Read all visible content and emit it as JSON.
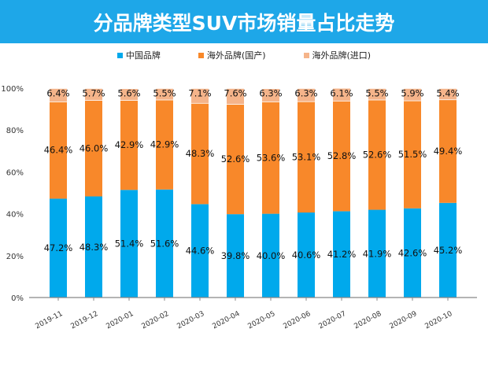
{
  "chart_data": {
    "type": "bar",
    "stacked": true,
    "title": "分品牌类型SUV市场销量占比走势",
    "categories": [
      "2019-11",
      "2019-12",
      "2020-01",
      "2020-02",
      "2020-03",
      "2020-04",
      "2020-05",
      "2020-06",
      "2020-07",
      "2020-08",
      "2020-09",
      "2020-10"
    ],
    "series": [
      {
        "name": "中国品牌",
        "color": "#00a9ec",
        "values": [
          47.2,
          48.3,
          51.4,
          51.6,
          44.6,
          39.8,
          40.0,
          40.6,
          41.2,
          41.9,
          42.6,
          45.2
        ]
      },
      {
        "name": "海外品牌(国产)",
        "color": "#f8882a",
        "values": [
          46.4,
          46.0,
          42.9,
          42.9,
          48.3,
          52.6,
          53.6,
          53.1,
          52.8,
          52.6,
          51.5,
          49.4
        ]
      },
      {
        "name": "海外品牌(进口)",
        "color": "#f5b48a",
        "values": [
          6.4,
          5.7,
          5.6,
          5.5,
          7.1,
          7.6,
          6.3,
          6.3,
          6.1,
          5.5,
          5.9,
          5.4
        ]
      }
    ],
    "ylim": [
      0,
      100
    ],
    "yticks": [
      "0%",
      "20%",
      "40%",
      "60%",
      "80%",
      "100%"
    ],
    "legend": "top",
    "grid": false
  }
}
